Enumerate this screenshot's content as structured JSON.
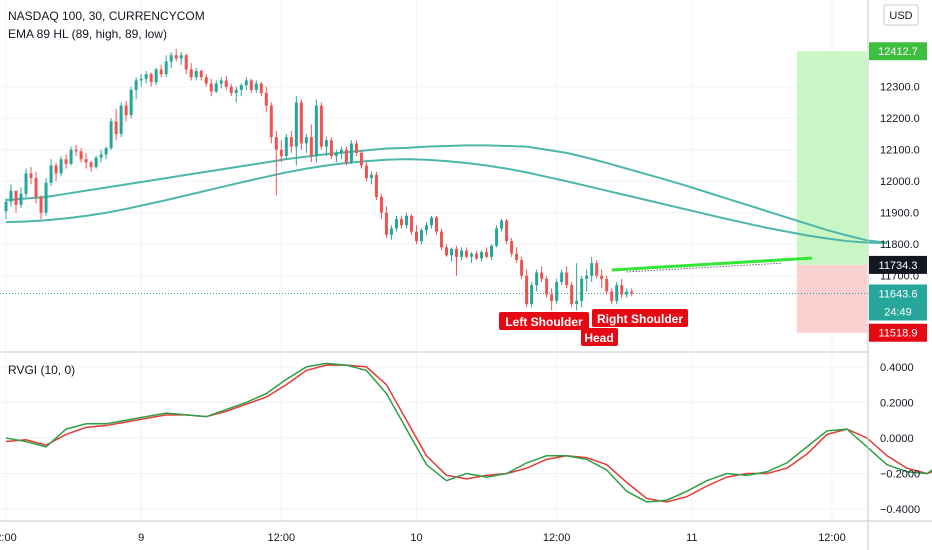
{
  "header": {
    "symbol_line": "NASDAQ 100, 30, CURRENCYCOM",
    "indicator_line": "EMA 89 HL (89, high, 89, low)",
    "currency_button": "USD"
  },
  "oscillator": {
    "label": "RVGI (10, 0)"
  },
  "price_tags": {
    "target": "12412.7",
    "entry": "11734.3",
    "current": "11643.6",
    "countdown": "24:49",
    "stop": "11518.9"
  },
  "annotations": {
    "left_shoulder": "Left Shoulder",
    "head": "Head",
    "right_shoulder": "Right Shoulder"
  },
  "colors": {
    "up": "#26a69a",
    "down": "#ef5350",
    "ema": "#4db6ac",
    "target_zone": "#c8f7c5",
    "stop_zone": "#fbd0d0",
    "neckline": "#33e633",
    "rvgi": "#2e9e44",
    "signal": "#e53935",
    "label_bg": "#e50914",
    "tag_dark": "#131722"
  },
  "chart_data": [
    {
      "type": "candlestick",
      "y_tick_labels": [
        "12300.0",
        "12200.0",
        "12100.0",
        "12000.0",
        "11900.0",
        "11800.0",
        "11700.0"
      ],
      "ylim": [
        11480,
        12550
      ],
      "x_tick_labels": [
        "2:00",
        "9",
        "12:00",
        "10",
        "12:00",
        "11",
        "12:00"
      ],
      "x_tick_index": [
        0,
        27,
        55,
        82,
        110,
        137,
        165
      ],
      "x_range": [
        0,
        172
      ],
      "candles": [
        [
          11905,
          11945,
          11880,
          11935
        ],
        [
          11935,
          11990,
          11920,
          11970
        ],
        [
          11970,
          11960,
          11900,
          11925
        ],
        [
          11925,
          11980,
          11915,
          11960
        ],
        [
          11960,
          12040,
          11950,
          12025
        ],
        [
          12025,
          12045,
          11990,
          12010
        ],
        [
          12010,
          12030,
          11930,
          11950
        ],
        [
          11950,
          11955,
          11880,
          11900
        ],
        [
          11900,
          12010,
          11890,
          11995
        ],
        [
          11995,
          12070,
          11985,
          12050
        ],
        [
          12050,
          12060,
          12000,
          12025
        ],
        [
          12025,
          12080,
          12015,
          12070
        ],
        [
          12070,
          12085,
          12040,
          12055
        ],
        [
          12055,
          12110,
          12050,
          12100
        ],
        [
          12100,
          12115,
          12080,
          12095
        ],
        [
          12095,
          12105,
          12060,
          12070
        ],
        [
          12070,
          12090,
          12040,
          12060
        ],
        [
          12060,
          12065,
          12030,
          12045
        ],
        [
          12045,
          12080,
          12040,
          12075
        ],
        [
          12075,
          12100,
          12060,
          12085
        ],
        [
          12085,
          12110,
          12070,
          12105
        ],
        [
          12105,
          12200,
          12100,
          12190
        ],
        [
          12190,
          12230,
          12130,
          12150
        ],
        [
          12150,
          12250,
          12140,
          12240
        ],
        [
          12240,
          12255,
          12190,
          12210
        ],
        [
          12210,
          12300,
          12200,
          12290
        ],
        [
          12290,
          12330,
          12260,
          12320
        ],
        [
          12320,
          12340,
          12300,
          12325
        ],
        [
          12325,
          12350,
          12310,
          12340
        ],
        [
          12340,
          12345,
          12300,
          12315
        ],
        [
          12315,
          12360,
          12305,
          12355
        ],
        [
          12355,
          12370,
          12330,
          12340
        ],
        [
          12340,
          12400,
          12330,
          12380
        ],
        [
          12380,
          12410,
          12360,
          12400
        ],
        [
          12400,
          12420,
          12380,
          12390
        ],
        [
          12390,
          12410,
          12370,
          12400
        ],
        [
          12400,
          12405,
          12340,
          12355
        ],
        [
          12355,
          12375,
          12320,
          12330
        ],
        [
          12330,
          12360,
          12320,
          12350
        ],
        [
          12350,
          12355,
          12320,
          12330
        ],
        [
          12330,
          12340,
          12300,
          12310
        ],
        [
          12310,
          12325,
          12270,
          12285
        ],
        [
          12285,
          12320,
          12280,
          12310
        ],
        [
          12310,
          12330,
          12295,
          12320
        ],
        [
          12320,
          12335,
          12290,
          12300
        ],
        [
          12300,
          12310,
          12270,
          12280
        ],
        [
          12280,
          12300,
          12250,
          12290
        ],
        [
          12290,
          12310,
          12270,
          12305
        ],
        [
          12305,
          12330,
          12290,
          12320
        ],
        [
          12320,
          12325,
          12280,
          12290
        ],
        [
          12290,
          12320,
          12280,
          12310
        ],
        [
          12310,
          12315,
          12270,
          12280
        ],
        [
          12280,
          12300,
          12220,
          12240
        ],
        [
          12240,
          12250,
          12120,
          12140
        ],
        [
          12140,
          12160,
          11955,
          12100
        ],
        [
          12100,
          12130,
          12060,
          12080
        ],
        [
          12080,
          12150,
          12070,
          12140
        ],
        [
          12140,
          12160,
          12090,
          12110
        ],
        [
          12110,
          12270,
          12050,
          12250
        ],
        [
          12250,
          12260,
          12100,
          12120
        ],
        [
          12120,
          12150,
          12090,
          12140
        ],
        [
          12140,
          12180,
          12060,
          12080
        ],
        [
          12080,
          12260,
          12060,
          12240
        ],
        [
          12240,
          12250,
          12100,
          12110
        ],
        [
          12110,
          12140,
          12080,
          12130
        ],
        [
          12130,
          12140,
          12070,
          12080
        ],
        [
          12080,
          12100,
          12060,
          12090
        ],
        [
          12090,
          12110,
          12070,
          12100
        ],
        [
          12100,
          12110,
          12050,
          12060
        ],
        [
          12060,
          12130,
          12055,
          12120
        ],
        [
          12120,
          12130,
          12080,
          12090
        ],
        [
          12090,
          12100,
          12040,
          12050
        ],
        [
          12050,
          12060,
          12000,
          12010
        ],
        [
          12010,
          12030,
          11990,
          12020
        ],
        [
          12020,
          12030,
          11940,
          11950
        ],
        [
          11950,
          11960,
          11880,
          11900
        ],
        [
          11900,
          11920,
          11820,
          11830
        ],
        [
          11830,
          11860,
          11815,
          11850
        ],
        [
          11850,
          11890,
          11840,
          11880
        ],
        [
          11880,
          11890,
          11850,
          11860
        ],
        [
          11860,
          11900,
          11850,
          11890
        ],
        [
          11890,
          11895,
          11830,
          11840
        ],
        [
          11840,
          11860,
          11800,
          11810
        ],
        [
          11810,
          11850,
          11800,
          11845
        ],
        [
          11845,
          11870,
          11830,
          11860
        ],
        [
          11860,
          11890,
          11850,
          11885
        ],
        [
          11885,
          11890,
          11830,
          11840
        ],
        [
          11840,
          11850,
          11780,
          11790
        ],
        [
          11790,
          11800,
          11760,
          11765
        ],
        [
          11765,
          11790,
          11745,
          11785
        ],
        [
          11785,
          11795,
          11700,
          11760
        ],
        [
          11760,
          11790,
          11750,
          11780
        ],
        [
          11780,
          11790,
          11755,
          11760
        ],
        [
          11760,
          11775,
          11740,
          11770
        ],
        [
          11770,
          11780,
          11750,
          11755
        ],
        [
          11755,
          11780,
          11745,
          11775
        ],
        [
          11775,
          11790,
          11755,
          11760
        ],
        [
          11760,
          11800,
          11750,
          11795
        ],
        [
          11795,
          11860,
          11790,
          11850
        ],
        [
          11850,
          11880,
          11840,
          11875
        ],
        [
          11875,
          11880,
          11800,
          11810
        ],
        [
          11810,
          11820,
          11760,
          11770
        ],
        [
          11770,
          11790,
          11740,
          11750
        ],
        [
          11750,
          11760,
          11690,
          11700
        ],
        [
          11700,
          11720,
          11600,
          11610
        ],
        [
          11610,
          11680,
          11600,
          11670
        ],
        [
          11670,
          11720,
          11650,
          11710
        ],
        [
          11710,
          11730,
          11680,
          11690
        ],
        [
          11690,
          11700,
          11630,
          11640
        ],
        [
          11640,
          11660,
          11590,
          11620
        ],
        [
          11620,
          11690,
          11610,
          11680
        ],
        [
          11680,
          11720,
          11670,
          11710
        ],
        [
          11710,
          11730,
          11660,
          11670
        ],
        [
          11670,
          11680,
          11600,
          11610
        ],
        [
          11610,
          11740,
          11590,
          11620
        ],
        [
          11620,
          11700,
          11600,
          11690
        ],
        [
          11690,
          11720,
          11650,
          11700
        ],
        [
          11700,
          11760,
          11680,
          11740
        ],
        [
          11740,
          11750,
          11690,
          11700
        ],
        [
          11700,
          11720,
          11660,
          11690
        ],
        [
          11690,
          11700,
          11640,
          11650
        ],
        [
          11650,
          11660,
          11610,
          11620
        ],
        [
          11620,
          11680,
          11610,
          11670
        ],
        [
          11670,
          11690,
          11630,
          11640
        ],
        [
          11640,
          11660,
          11630,
          11650
        ],
        [
          11650,
          11660,
          11635,
          11644
        ]
      ],
      "ema_high": [
        11940,
        11945,
        11950,
        11960,
        11970,
        11980,
        11990,
        12000,
        12010,
        12020,
        12030,
        12040,
        12050,
        12060,
        12070,
        12078,
        12086,
        12092,
        12098,
        12104,
        12106,
        12110,
        12112,
        12114,
        12114,
        12112,
        12110,
        12100,
        12090,
        12075,
        12058,
        12040,
        12022,
        12004,
        11985,
        11965,
        11945,
        11925,
        11905,
        11885,
        11865,
        11845,
        11828,
        11812,
        11805
      ],
      "ema_low": [
        11870,
        11872,
        11876,
        11882,
        11890,
        11900,
        11912,
        11926,
        11940,
        11955,
        11970,
        11985,
        12000,
        12014,
        12028,
        12040,
        12050,
        12058,
        12064,
        12068,
        12070,
        12068,
        12064,
        12058,
        12050,
        12040,
        12028,
        12014,
        12000,
        11985,
        11970,
        11955,
        11940,
        11925,
        11910,
        11895,
        11880,
        11866,
        11852,
        11840,
        11828,
        11818,
        11810,
        11805,
        11804
      ],
      "ema_step": 4,
      "risk_reward": {
        "target": 12412.7,
        "entry": 11734.3,
        "stop": 11518.9,
        "start_index": 158,
        "end_index": 172
      },
      "neckline": [
        [
          121,
          11718
        ],
        [
          161,
          11756
        ]
      ],
      "neckline_dotted": [
        [
          124,
          11712
        ],
        [
          155,
          11740
        ]
      ]
    },
    {
      "type": "line",
      "name": "RVGI (10, 0)",
      "y_tick_labels": [
        "0.4000",
        "0.2000",
        "0.0000",
        "−0.2000",
        "−0.4000"
      ],
      "ylim": [
        -0.45,
        0.45
      ],
      "step": 4,
      "rvgi": [
        0,
        -0.02,
        -0.05,
        0.05,
        0.08,
        0.08,
        0.1,
        0.12,
        0.14,
        0.13,
        0.12,
        0.16,
        0.2,
        0.25,
        0.33,
        0.4,
        0.42,
        0.41,
        0.38,
        0.25,
        0.05,
        -0.15,
        -0.24,
        -0.2,
        -0.22,
        -0.2,
        -0.14,
        -0.1,
        -0.1,
        -0.12,
        -0.18,
        -0.3,
        -0.36,
        -0.35,
        -0.3,
        -0.24,
        -0.2,
        -0.21,
        -0.19,
        -0.14,
        -0.05,
        0.04,
        0.05,
        -0.05,
        -0.15,
        -0.19,
        -0.2,
        -0.12,
        -0.02,
        -0.02,
        0.02,
        -0.05,
        -0.05
      ],
      "signal": [
        -0.02,
        -0.01,
        -0.04,
        0.02,
        0.06,
        0.07,
        0.09,
        0.11,
        0.13,
        0.13,
        0.12,
        0.15,
        0.19,
        0.23,
        0.3,
        0.38,
        0.41,
        0.41,
        0.4,
        0.3,
        0.1,
        -0.1,
        -0.21,
        -0.23,
        -0.21,
        -0.2,
        -0.17,
        -0.12,
        -0.1,
        -0.11,
        -0.15,
        -0.25,
        -0.34,
        -0.36,
        -0.33,
        -0.27,
        -0.22,
        -0.2,
        -0.2,
        -0.17,
        -0.09,
        0.02,
        0.05,
        0.0,
        -0.1,
        -0.17,
        -0.2,
        -0.16,
        -0.07,
        -0.02,
        0.0,
        -0.03,
        -0.02
      ]
    }
  ]
}
